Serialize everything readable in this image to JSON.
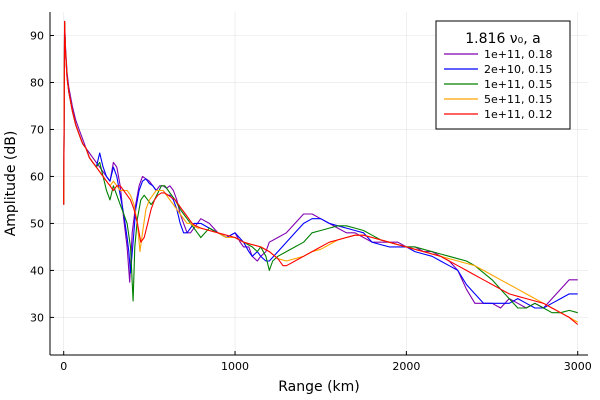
{
  "chart_data": {
    "type": "line",
    "xlabel": "Range (km)",
    "ylabel": "Amplitude (dB)",
    "xlim": [
      -80,
      3060
    ],
    "ylim": [
      22,
      95
    ],
    "xticks": [
      0,
      1000,
      2000,
      3000
    ],
    "xtick_labels": [
      "0",
      "1000",
      "2000",
      "3000"
    ],
    "yticks": [
      30,
      40,
      50,
      60,
      70,
      80,
      90
    ],
    "ytick_labels": [
      "30",
      "40",
      "50",
      "60",
      "70",
      "80",
      "90"
    ],
    "grid": true,
    "legend": {
      "title": "1.816 ν₀, a",
      "position": "top-right"
    },
    "series": [
      {
        "name": "1e+11, 0.18",
        "color": "#8000b0",
        "x": [
          0,
          5,
          10,
          20,
          30,
          50,
          70,
          90,
          110,
          130,
          150,
          170,
          190,
          210,
          230,
          250,
          270,
          290,
          310,
          330,
          350,
          370,
          385,
          400,
          420,
          440,
          460,
          480,
          500,
          520,
          540,
          560,
          580,
          600,
          620,
          640,
          660,
          680,
          700,
          720,
          740,
          760,
          780,
          800,
          850,
          900,
          950,
          1000,
          1030,
          1050,
          1080,
          1100,
          1130,
          1150,
          1180,
          1200,
          1250,
          1300,
          1350,
          1400,
          1450,
          1500,
          1550,
          1600,
          1650,
          1700,
          1750,
          1800,
          1850,
          1900,
          1950,
          2000,
          2050,
          2100,
          2150,
          2200,
          2250,
          2300,
          2350,
          2400,
          2450,
          2500,
          2550,
          2600,
          2650,
          2700,
          2750,
          2800,
          2850,
          2900,
          2950,
          3000
        ],
        "y": [
          54,
          93,
          88,
          82,
          79,
          75,
          72,
          70,
          68,
          66,
          65,
          64,
          63,
          62,
          61,
          60,
          59,
          63,
          62,
          58,
          51,
          45,
          37.5,
          48,
          54,
          58,
          60,
          59.5,
          59,
          58,
          57,
          58,
          58,
          57.5,
          58,
          57,
          55,
          52,
          50,
          48,
          48,
          49,
          50,
          51,
          50,
          48,
          47,
          48,
          46,
          45,
          45,
          43,
          42,
          43,
          44,
          46,
          47,
          48,
          50,
          52,
          52,
          51,
          50,
          49,
          48,
          48,
          47,
          46,
          46,
          46,
          46,
          45,
          45,
          44,
          44,
          43,
          42,
          40,
          36,
          33,
          33,
          33,
          32,
          34,
          33,
          32,
          33,
          32,
          34,
          36,
          38,
          38
        ]
      },
      {
        "name": "2e+10, 0.15",
        "color": "#0000ff",
        "x": [
          0,
          5,
          10,
          20,
          30,
          50,
          70,
          90,
          110,
          130,
          150,
          170,
          190,
          210,
          230,
          250,
          270,
          290,
          310,
          330,
          350,
          370,
          380,
          390,
          405,
          420,
          440,
          460,
          480,
          500,
          520,
          540,
          560,
          580,
          600,
          620,
          640,
          660,
          680,
          700,
          720,
          740,
          760,
          780,
          800,
          850,
          900,
          950,
          1000,
          1050,
          1080,
          1100,
          1130,
          1150,
          1180,
          1200,
          1250,
          1300,
          1350,
          1400,
          1450,
          1500,
          1550,
          1600,
          1650,
          1700,
          1750,
          1800,
          1850,
          1900,
          1950,
          2000,
          2050,
          2100,
          2150,
          2200,
          2250,
          2300,
          2350,
          2400,
          2450,
          2500,
          2550,
          2600,
          2650,
          2700,
          2750,
          2800,
          2850,
          2900,
          2950,
          3000
        ],
        "y": [
          54,
          93,
          87,
          81,
          78,
          74,
          71,
          69,
          67,
          66,
          64,
          63,
          62,
          65,
          62,
          60,
          59,
          62,
          60,
          56,
          52,
          47,
          44,
          39.5,
          46,
          53,
          57,
          59,
          59.5,
          58.5,
          58,
          57,
          57,
          57,
          56,
          56,
          55,
          53,
          50,
          48,
          48,
          49,
          50,
          50,
          50,
          49,
          48,
          47,
          48,
          46,
          44,
          43,
          44,
          43,
          42,
          42,
          44,
          46,
          48,
          50,
          51,
          51,
          50,
          49.5,
          49,
          48.5,
          48,
          46,
          45.5,
          45,
          45,
          45,
          44,
          43.5,
          43,
          42,
          41,
          40,
          37,
          35,
          33,
          33,
          33,
          33,
          34,
          33,
          32,
          32,
          33,
          34,
          35,
          35
        ]
      },
      {
        "name": "1e+11, 0.15",
        "color": "#008000",
        "x": [
          0,
          5,
          10,
          20,
          30,
          50,
          70,
          90,
          110,
          130,
          150,
          170,
          190,
          210,
          230,
          250,
          270,
          290,
          310,
          330,
          350,
          370,
          390,
          405,
          415,
          430,
          450,
          470,
          490,
          510,
          530,
          550,
          570,
          590,
          610,
          630,
          650,
          680,
          700,
          720,
          740,
          760,
          780,
          800,
          850,
          900,
          950,
          1000,
          1050,
          1100,
          1130,
          1150,
          1180,
          1200,
          1220,
          1250,
          1300,
          1350,
          1400,
          1450,
          1500,
          1550,
          1600,
          1650,
          1700,
          1750,
          1800,
          1850,
          1900,
          1950,
          2000,
          2050,
          2100,
          2150,
          2200,
          2250,
          2300,
          2350,
          2400,
          2450,
          2500,
          2550,
          2600,
          2650,
          2700,
          2750,
          2800,
          2850,
          2900,
          2950,
          3000
        ],
        "y": [
          54,
          93,
          87,
          81,
          78,
          74,
          71,
          69,
          67,
          66,
          64,
          63,
          62,
          63,
          60,
          57,
          55,
          58,
          56,
          54,
          52,
          50,
          45,
          33.5,
          45,
          51,
          55,
          56,
          55,
          54,
          55,
          56.5,
          58,
          58,
          57,
          56,
          55,
          53,
          52,
          51,
          50,
          49,
          48,
          47,
          49,
          48,
          47,
          47,
          46,
          45,
          44,
          45,
          43,
          40,
          42,
          43,
          44,
          45,
          46,
          48,
          48.5,
          49,
          49.5,
          49.5,
          49,
          48.5,
          47.5,
          46.5,
          46,
          45.5,
          45,
          45,
          44.5,
          44,
          43.5,
          43,
          42.5,
          42,
          41,
          39.5,
          38,
          36,
          34,
          32,
          32,
          33,
          32,
          31,
          31,
          31.5,
          31
        ]
      },
      {
        "name": "5e+11, 0.15",
        "color": "#ffa500",
        "x": [
          0,
          5,
          10,
          20,
          30,
          50,
          70,
          90,
          110,
          130,
          150,
          170,
          190,
          210,
          230,
          250,
          270,
          290,
          310,
          330,
          350,
          370,
          390,
          410,
          430,
          445,
          460,
          480,
          500,
          520,
          540,
          560,
          580,
          600,
          620,
          640,
          660,
          680,
          700,
          720,
          740,
          760,
          780,
          800,
          850,
          900,
          950,
          1000,
          1050,
          1100,
          1150,
          1200,
          1250,
          1300,
          1350,
          1400,
          1450,
          1500,
          1550,
          1600,
          1650,
          1700,
          1750,
          1800,
          1850,
          1900,
          1950,
          2000,
          2050,
          2100,
          2150,
          2200,
          2250,
          2300,
          2350,
          2400,
          2450,
          2500,
          2550,
          2600,
          2650,
          2700,
          2750,
          2800,
          2850,
          2900,
          2950,
          3000
        ],
        "y": [
          54,
          93,
          87,
          81,
          78,
          74,
          71,
          69,
          67,
          66,
          64,
          63,
          62,
          61,
          60,
          59,
          58,
          59,
          58,
          57,
          57,
          57,
          56,
          54,
          50,
          44,
          48,
          53,
          55,
          56,
          57,
          57,
          57,
          56,
          55,
          54,
          53,
          52,
          51,
          50,
          50,
          49.5,
          49,
          49,
          48.5,
          48,
          47,
          47,
          46,
          45.5,
          45,
          44,
          42.5,
          42,
          42.5,
          43,
          44,
          44.5,
          45.5,
          46.5,
          47,
          47.5,
          47.5,
          47,
          46.5,
          46,
          45.5,
          45,
          44.5,
          44,
          43.5,
          43,
          42.5,
          42,
          41.5,
          41,
          40,
          39,
          38,
          37,
          36,
          35,
          34,
          33,
          32,
          31,
          30,
          29
        ]
      },
      {
        "name": "1e+11, 0.12",
        "color": "#ff0000",
        "x": [
          0,
          5,
          10,
          20,
          30,
          50,
          70,
          90,
          110,
          130,
          150,
          170,
          190,
          210,
          230,
          250,
          270,
          290,
          310,
          330,
          350,
          370,
          390,
          410,
          430,
          450,
          470,
          490,
          510,
          530,
          550,
          570,
          590,
          610,
          630,
          650,
          670,
          690,
          710,
          730,
          750,
          770,
          800,
          850,
          900,
          950,
          1000,
          1050,
          1100,
          1150,
          1200,
          1250,
          1280,
          1300,
          1350,
          1400,
          1450,
          1500,
          1550,
          1600,
          1650,
          1700,
          1750,
          1800,
          1850,
          1900,
          1950,
          2000,
          2050,
          2100,
          2150,
          2200,
          2250,
          2300,
          2350,
          2400,
          2450,
          2500,
          2550,
          2600,
          2650,
          2700,
          2750,
          2800,
          2850,
          2900,
          2950,
          3000
        ],
        "y": [
          54,
          93,
          87,
          81,
          78,
          74,
          71,
          69,
          67,
          66,
          64,
          63,
          62,
          61,
          60,
          59,
          58,
          57,
          58,
          58,
          57,
          56,
          55,
          53,
          50,
          46,
          47,
          50,
          53,
          55,
          56,
          56.5,
          56.5,
          56,
          55.5,
          55,
          54,
          53,
          52,
          51,
          50,
          49.5,
          49,
          48.5,
          48,
          47.5,
          47,
          46,
          45.5,
          45,
          44,
          42.5,
          41,
          41,
          42,
          43,
          44,
          45,
          46,
          46.5,
          47,
          47.5,
          47.5,
          47,
          46.5,
          46,
          45.5,
          45,
          44.5,
          44,
          43.5,
          43,
          42,
          41,
          40,
          39,
          38,
          37,
          36,
          35,
          34.5,
          34,
          33.5,
          33,
          32,
          31,
          30,
          28.5
        ]
      }
    ]
  }
}
